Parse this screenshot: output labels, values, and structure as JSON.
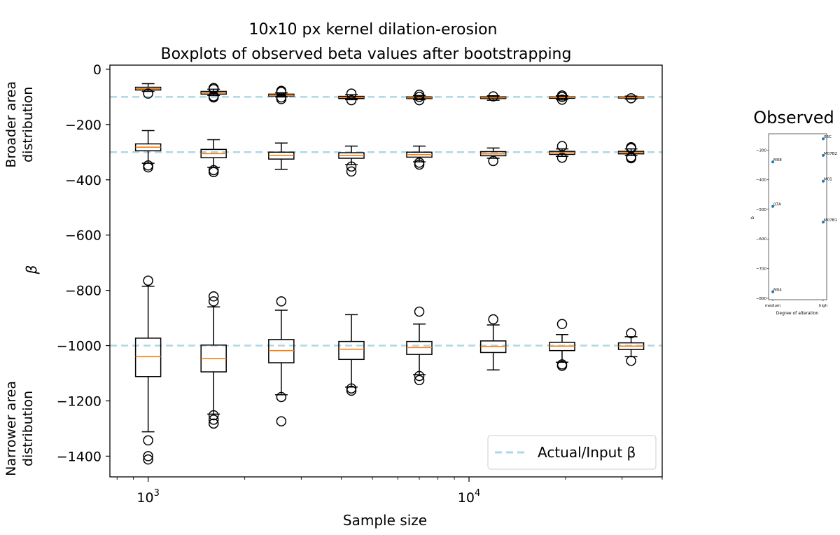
{
  "chart_data": [
    {
      "type": "boxplot",
      "title": "10x10 px kernel dilation-erosion",
      "subtitle": "Boxplots of observed beta values after bootstrapping",
      "xlabel": "Sample size",
      "ylabel": "β",
      "xscale": "log",
      "xlim": [
        760,
        40000
      ],
      "ylim": [
        -1475,
        15
      ],
      "xticks": [
        {
          "value": 1000,
          "base": "10",
          "exp": "3"
        },
        {
          "value": 10000,
          "base": "10",
          "exp": "4"
        }
      ],
      "yticks": [
        0,
        -200,
        -400,
        -600,
        -800,
        -1000,
        -1200,
        -1400
      ],
      "ytick_labels": [
        "0",
        "−200",
        "−400",
        "−600",
        "−800",
        "−1000",
        "−1200",
        "−1400"
      ],
      "grid": false,
      "legend": {
        "position": "lower-right",
        "entries": [
          {
            "label": "Actual/Input β",
            "style": "dashed",
            "color": "#add8e6"
          }
        ]
      },
      "reference_lines": [
        -100,
        -300,
        -1000
      ],
      "side_labels": [
        {
          "text": [
            "Broader area",
            "distribution"
          ],
          "y_center": -200
        },
        {
          "text": [
            "Narrower area",
            "distribution"
          ],
          "y_center": -1300
        }
      ],
      "sample_sizes": [
        1000,
        1600,
        2600,
        4300,
        7000,
        11900,
        19500,
        32000
      ],
      "groups": [
        {
          "name": "Broader area distribution (input −100)",
          "boxes": [
            {
              "whislo": -80,
              "q1": -75,
              "med": -70,
              "q3": -65,
              "whishi": -52,
              "fliers": [
                -88
              ]
            },
            {
              "whislo": -95,
              "q1": -90,
              "med": -85,
              "q3": -80,
              "whishi": -72,
              "fliers": [
                -68,
                -72,
                -98,
                -102
              ]
            },
            {
              "whislo": -100,
              "q1": -97,
              "med": -95,
              "q3": -90,
              "whishi": -85,
              "fliers": [
                -78,
                -82,
                -102,
                -108
              ]
            },
            {
              "whislo": -110,
              "q1": -106,
              "med": -102,
              "q3": -98,
              "whishi": -92,
              "fliers": [
                -88,
                -112
              ]
            },
            {
              "whislo": -110,
              "q1": -106,
              "med": -103,
              "q3": -100,
              "whishi": -95,
              "fliers": [
                -92,
                -100,
                -112
              ]
            },
            {
              "whislo": -112,
              "q1": -106,
              "med": -103,
              "q3": -100,
              "whishi": -96,
              "fliers": [
                -98
              ]
            },
            {
              "whislo": -110,
              "q1": -105,
              "med": -102,
              "q3": -100,
              "whishi": -96,
              "fliers": [
                -95,
                -100,
                -110
              ]
            },
            {
              "whislo": -108,
              "q1": -104,
              "med": -102,
              "q3": -100,
              "whishi": -97,
              "fliers": [
                -105
              ]
            }
          ]
        },
        {
          "name": "Broader area distribution (input −300)",
          "boxes": [
            {
              "whislo": -340,
              "q1": -295,
              "med": -282,
              "q3": -270,
              "whishi": -222,
              "fliers": [
                -348,
                -355
              ]
            },
            {
              "whislo": -355,
              "q1": -320,
              "med": -305,
              "q3": -290,
              "whishi": -255,
              "fliers": [
                -365,
                -372
              ]
            },
            {
              "whislo": -362,
              "q1": -325,
              "med": -312,
              "q3": -300,
              "whishi": -267,
              "fliers": []
            },
            {
              "whislo": -345,
              "q1": -322,
              "med": -312,
              "q3": -302,
              "whishi": -278,
              "fliers": [
                -352,
                -370
              ]
            },
            {
              "whislo": -335,
              "q1": -318,
              "med": -309,
              "q3": -300,
              "whishi": -278,
              "fliers": [
                -338,
                -345
              ]
            },
            {
              "whislo": -322,
              "q1": -313,
              "med": -306,
              "q3": -298,
              "whishi": -285,
              "fliers": [
                -332
              ]
            },
            {
              "whislo": -315,
              "q1": -308,
              "med": -302,
              "q3": -297,
              "whishi": -288,
              "fliers": [
                -278,
                -320
              ]
            },
            {
              "whislo": -312,
              "q1": -306,
              "med": -301,
              "q3": -297,
              "whishi": -288,
              "fliers": [
                -282,
                -286,
                -318,
                -322
              ]
            }
          ]
        },
        {
          "name": "Narrower area distribution (input −1000)",
          "boxes": [
            {
              "whislo": -1312,
              "q1": -1112,
              "med": -1040,
              "q3": -973,
              "whishi": -785,
              "fliers": [
                -765,
                -1343,
                -1400,
                -1412
              ]
            },
            {
              "whislo": -1248,
              "q1": -1095,
              "med": -1047,
              "q3": -998,
              "whishi": -860,
              "fliers": [
                -822,
                -840,
                -1252,
                -1268,
                -1282
              ]
            },
            {
              "whislo": -1178,
              "q1": -1062,
              "med": -1018,
              "q3": -978,
              "whishi": -872,
              "fliers": [
                -840,
                -1186,
                -1274
              ]
            },
            {
              "whislo": -1150,
              "q1": -1050,
              "med": -1013,
              "q3": -985,
              "whishi": -888,
              "fliers": [
                -1155,
                -1163
              ]
            },
            {
              "whislo": -1105,
              "q1": -1032,
              "med": -1007,
              "q3": -985,
              "whishi": -922,
              "fliers": [
                -877,
                -1110,
                -1125
              ]
            },
            {
              "whislo": -1088,
              "q1": -1025,
              "med": -1003,
              "q3": -983,
              "whishi": -925,
              "fliers": [
                -905
              ]
            },
            {
              "whislo": -1060,
              "q1": -1018,
              "med": -1002,
              "q3": -988,
              "whishi": -960,
              "fliers": [
                -922,
                -1068,
                -1073
              ]
            },
            {
              "whislo": -1040,
              "q1": -1014,
              "med": -1002,
              "q3": -990,
              "whishi": -968,
              "fliers": [
                -955,
                -1055
              ]
            }
          ]
        }
      ],
      "colors": {
        "box": "#000000",
        "median": "#ff7f0e",
        "reference": "#add8e6"
      }
    },
    {
      "type": "scatter",
      "title": "Observed",
      "xlabel": "Degree of alteration",
      "ylabel": "b",
      "categories": [
        "medium",
        "high"
      ],
      "ylim": [
        -805,
        -245
      ],
      "yticks": [
        -300,
        -400,
        -500,
        -600,
        -700,
        -800
      ],
      "ytick_labels": [
        "−300",
        "−400",
        "−500",
        "−600",
        "−700",
        "−800"
      ],
      "points": [
        {
          "category": "medium",
          "y": -340,
          "label": "M08"
        },
        {
          "category": "medium",
          "y": -490,
          "label": "07A"
        },
        {
          "category": "medium",
          "y": -778,
          "label": "M04"
        },
        {
          "category": "high",
          "y": -262,
          "label": "06C"
        },
        {
          "category": "high",
          "y": -318,
          "label": "M07B2"
        },
        {
          "category": "high",
          "y": -405,
          "label": "M01"
        },
        {
          "category": "high",
          "y": -543,
          "label": "M07B1"
        }
      ],
      "point_color": "#1f77b4"
    }
  ]
}
